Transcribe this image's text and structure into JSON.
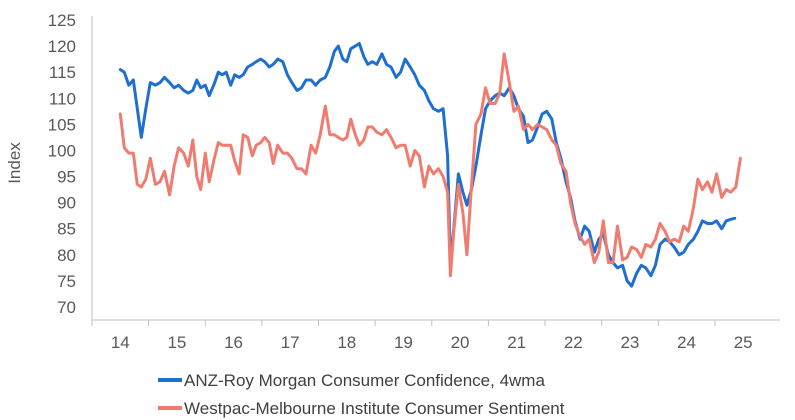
{
  "chart_data": {
    "type": "line",
    "title": "",
    "xlabel": "",
    "ylabel": "Index",
    "ylim": [
      70,
      125
    ],
    "yticks": [
      70,
      75,
      80,
      85,
      90,
      95,
      100,
      105,
      110,
      115,
      120,
      125
    ],
    "xlim": [
      2013.5,
      2025.65
    ],
    "xticks": [
      "14",
      "15",
      "16",
      "17",
      "18",
      "19",
      "20",
      "21",
      "22",
      "23",
      "24",
      "25"
    ],
    "grid": false,
    "legend_position": "bottom",
    "series": [
      {
        "name": "ANZ-Roy Morgan Consumer Confidence, 4wma",
        "color": "#1f6fd1",
        "points": [
          [
            2013.55,
            115.5
          ],
          [
            2013.62,
            115.0
          ],
          [
            2013.7,
            112.5
          ],
          [
            2013.78,
            113.5
          ],
          [
            2013.85,
            108.0
          ],
          [
            2013.92,
            102.5
          ],
          [
            2014.0,
            108.0
          ],
          [
            2014.08,
            113.0
          ],
          [
            2014.17,
            112.5
          ],
          [
            2014.25,
            113.0
          ],
          [
            2014.33,
            114.0
          ],
          [
            2014.42,
            113.0
          ],
          [
            2014.5,
            112.0
          ],
          [
            2014.58,
            112.5
          ],
          [
            2014.67,
            111.5
          ],
          [
            2014.75,
            111.0
          ],
          [
            2014.83,
            111.5
          ],
          [
            2014.9,
            113.5
          ],
          [
            2014.97,
            112.0
          ],
          [
            2015.05,
            112.5
          ],
          [
            2015.12,
            110.5
          ],
          [
            2015.2,
            112.5
          ],
          [
            2015.28,
            115.0
          ],
          [
            2015.35,
            114.5
          ],
          [
            2015.42,
            115.0
          ],
          [
            2015.5,
            112.5
          ],
          [
            2015.57,
            114.5
          ],
          [
            2015.65,
            114.0
          ],
          [
            2015.72,
            114.5
          ],
          [
            2015.8,
            116.0
          ],
          [
            2015.88,
            116.5
          ],
          [
            2015.95,
            117.0
          ],
          [
            2016.03,
            117.5
          ],
          [
            2016.1,
            117.0
          ],
          [
            2016.18,
            116.0
          ],
          [
            2016.25,
            116.5
          ],
          [
            2016.33,
            117.5
          ],
          [
            2016.42,
            117.0
          ],
          [
            2016.5,
            114.5
          ],
          [
            2016.58,
            113.0
          ],
          [
            2016.67,
            111.5
          ],
          [
            2016.75,
            112.0
          ],
          [
            2016.83,
            113.5
          ],
          [
            2016.92,
            113.5
          ],
          [
            2017.0,
            112.5
          ],
          [
            2017.08,
            113.5
          ],
          [
            2017.17,
            114.0
          ],
          [
            2017.25,
            116.0
          ],
          [
            2017.33,
            119.0
          ],
          [
            2017.4,
            120.0
          ],
          [
            2017.48,
            117.5
          ],
          [
            2017.55,
            117.0
          ],
          [
            2017.62,
            119.5
          ],
          [
            2017.7,
            120.0
          ],
          [
            2017.77,
            120.5
          ],
          [
            2017.85,
            118.0
          ],
          [
            2017.92,
            116.5
          ],
          [
            2018.0,
            117.0
          ],
          [
            2018.08,
            116.5
          ],
          [
            2018.17,
            118.5
          ],
          [
            2018.25,
            116.5
          ],
          [
            2018.33,
            116.0
          ],
          [
            2018.42,
            114.0
          ],
          [
            2018.5,
            115.0
          ],
          [
            2018.58,
            117.5
          ],
          [
            2018.67,
            116.0
          ],
          [
            2018.75,
            114.5
          ],
          [
            2018.83,
            112.5
          ],
          [
            2018.92,
            111.5
          ],
          [
            2019.0,
            109.5
          ],
          [
            2019.08,
            108.0
          ],
          [
            2019.17,
            107.5
          ],
          [
            2019.25,
            108.0
          ],
          [
            2019.33,
            99.0
          ],
          [
            2019.38,
            78.5
          ],
          [
            2019.44,
            85.0
          ],
          [
            2019.52,
            95.5
          ],
          [
            2019.6,
            92.0
          ],
          [
            2019.67,
            89.5
          ],
          [
            2019.75,
            92.5
          ],
          [
            2019.83,
            97.0
          ],
          [
            2019.92,
            103.0
          ],
          [
            2020.0,
            108.0
          ],
          [
            2020.08,
            109.5
          ],
          [
            2020.17,
            110.5
          ],
          [
            2020.25,
            111.0
          ],
          [
            2020.33,
            110.5
          ],
          [
            2020.42,
            112.0
          ],
          [
            2020.5,
            110.5
          ],
          [
            2020.58,
            108.0
          ],
          [
            2020.67,
            106.5
          ],
          [
            2020.75,
            101.5
          ],
          [
            2020.83,
            102.0
          ],
          [
            2020.92,
            104.5
          ],
          [
            2021.0,
            107.0
          ],
          [
            2021.08,
            107.5
          ],
          [
            2021.17,
            106.0
          ],
          [
            2021.25,
            101.5
          ],
          [
            2021.33,
            98.5
          ],
          [
            2021.42,
            94.0
          ],
          [
            2021.5,
            91.0
          ],
          [
            2021.58,
            86.5
          ],
          [
            2021.67,
            83.0
          ],
          [
            2021.75,
            85.5
          ],
          [
            2021.83,
            84.5
          ],
          [
            2021.92,
            80.5
          ],
          [
            2022.0,
            83.0
          ],
          [
            2022.08,
            84.0
          ],
          [
            2022.17,
            80.0
          ],
          [
            2022.25,
            78.5
          ],
          [
            2022.33,
            77.5
          ],
          [
            2022.42,
            78.0
          ],
          [
            2022.5,
            75.0
          ],
          [
            2022.58,
            74.0
          ],
          [
            2022.67,
            76.5
          ],
          [
            2022.75,
            78.0
          ],
          [
            2022.83,
            77.5
          ],
          [
            2022.92,
            76.0
          ],
          [
            2023.0,
            78.0
          ],
          [
            2023.08,
            82.0
          ],
          [
            2023.17,
            83.0
          ],
          [
            2023.25,
            82.5
          ],
          [
            2023.33,
            81.5
          ],
          [
            2023.42,
            80.0
          ],
          [
            2023.5,
            80.5
          ],
          [
            2023.58,
            82.0
          ],
          [
            2023.67,
            83.0
          ],
          [
            2023.75,
            84.5
          ],
          [
            2023.83,
            86.5
          ],
          [
            2023.92,
            86.0
          ],
          [
            2024.0,
            86.0
          ],
          [
            2024.08,
            86.5
          ],
          [
            2024.17,
            85.0
          ],
          [
            2024.25,
            86.5
          ],
          [
            2024.33,
            86.8
          ],
          [
            2024.4,
            87.0
          ]
        ]
      },
      {
        "name": "Westpac-Melbourne Institute Consumer Sentiment",
        "color": "#f07c70",
        "points": [
          [
            2013.55,
            107.0
          ],
          [
            2013.62,
            100.5
          ],
          [
            2013.7,
            99.5
          ],
          [
            2013.78,
            99.5
          ],
          [
            2013.85,
            93.5
          ],
          [
            2013.92,
            93.0
          ],
          [
            2014.0,
            94.5
          ],
          [
            2014.08,
            98.5
          ],
          [
            2014.17,
            93.5
          ],
          [
            2014.25,
            94.0
          ],
          [
            2014.33,
            96.0
          ],
          [
            2014.42,
            91.5
          ],
          [
            2014.5,
            97.0
          ],
          [
            2014.58,
            100.5
          ],
          [
            2014.67,
            99.5
          ],
          [
            2014.75,
            97.0
          ],
          [
            2014.83,
            102.0
          ],
          [
            2014.9,
            95.0
          ],
          [
            2014.97,
            92.5
          ],
          [
            2015.05,
            99.5
          ],
          [
            2015.12,
            94.0
          ],
          [
            2015.2,
            98.0
          ],
          [
            2015.28,
            101.5
          ],
          [
            2015.35,
            101.0
          ],
          [
            2015.42,
            101.0
          ],
          [
            2015.5,
            101.0
          ],
          [
            2015.57,
            98.0
          ],
          [
            2015.65,
            95.5
          ],
          [
            2015.72,
            103.0
          ],
          [
            2015.8,
            102.5
          ],
          [
            2015.88,
            99.0
          ],
          [
            2015.95,
            101.0
          ],
          [
            2016.03,
            101.5
          ],
          [
            2016.1,
            102.5
          ],
          [
            2016.18,
            101.5
          ],
          [
            2016.25,
            97.5
          ],
          [
            2016.33,
            101.0
          ],
          [
            2016.42,
            99.5
          ],
          [
            2016.5,
            99.5
          ],
          [
            2016.58,
            98.5
          ],
          [
            2016.67,
            96.5
          ],
          [
            2016.75,
            96.5
          ],
          [
            2016.83,
            95.5
          ],
          [
            2016.92,
            101.0
          ],
          [
            2017.0,
            99.5
          ],
          [
            2017.08,
            103.0
          ],
          [
            2017.17,
            108.5
          ],
          [
            2017.25,
            103.0
          ],
          [
            2017.33,
            103.0
          ],
          [
            2017.4,
            102.5
          ],
          [
            2017.48,
            102.0
          ],
          [
            2017.55,
            102.5
          ],
          [
            2017.62,
            106.0
          ],
          [
            2017.7,
            103.0
          ],
          [
            2017.77,
            101.0
          ],
          [
            2017.85,
            102.0
          ],
          [
            2017.92,
            104.5
          ],
          [
            2018.0,
            104.5
          ],
          [
            2018.08,
            103.5
          ],
          [
            2018.17,
            103.0
          ],
          [
            2018.25,
            104.0
          ],
          [
            2018.33,
            102.5
          ],
          [
            2018.42,
            100.5
          ],
          [
            2018.5,
            101.0
          ],
          [
            2018.58,
            101.0
          ],
          [
            2018.67,
            97.0
          ],
          [
            2018.75,
            100.0
          ],
          [
            2018.83,
            99.0
          ],
          [
            2018.92,
            93.0
          ],
          [
            2019.0,
            97.0
          ],
          [
            2019.08,
            95.5
          ],
          [
            2019.17,
            96.5
          ],
          [
            2019.25,
            95.0
          ],
          [
            2019.33,
            92.0
          ],
          [
            2019.38,
            76.0
          ],
          [
            2019.44,
            84.5
          ],
          [
            2019.52,
            93.5
          ],
          [
            2019.6,
            88.0
          ],
          [
            2019.67,
            80.0
          ],
          [
            2019.75,
            93.0
          ],
          [
            2019.83,
            105.0
          ],
          [
            2019.92,
            107.0
          ],
          [
            2020.0,
            112.0
          ],
          [
            2020.08,
            109.0
          ],
          [
            2020.17,
            109.0
          ],
          [
            2020.25,
            111.0
          ],
          [
            2020.33,
            118.5
          ],
          [
            2020.42,
            113.0
          ],
          [
            2020.5,
            107.5
          ],
          [
            2020.58,
            108.5
          ],
          [
            2020.67,
            104.0
          ],
          [
            2020.75,
            105.0
          ],
          [
            2020.83,
            104.0
          ],
          [
            2020.92,
            105.0
          ],
          [
            2021.0,
            104.5
          ],
          [
            2021.08,
            104.0
          ],
          [
            2021.17,
            102.0
          ],
          [
            2021.25,
            101.0
          ],
          [
            2021.33,
            97.5
          ],
          [
            2021.42,
            96.0
          ],
          [
            2021.5,
            90.0
          ],
          [
            2021.58,
            86.0
          ],
          [
            2021.67,
            83.5
          ],
          [
            2021.75,
            82.0
          ],
          [
            2021.83,
            83.0
          ],
          [
            2021.92,
            78.5
          ],
          [
            2022.0,
            80.5
          ],
          [
            2022.08,
            86.5
          ],
          [
            2022.17,
            78.5
          ],
          [
            2022.25,
            78.5
          ],
          [
            2022.33,
            85.5
          ],
          [
            2022.42,
            79.0
          ],
          [
            2022.5,
            79.5
          ],
          [
            2022.58,
            81.5
          ],
          [
            2022.67,
            81.0
          ],
          [
            2022.75,
            79.5
          ],
          [
            2022.83,
            82.0
          ],
          [
            2022.92,
            81.5
          ],
          [
            2023.0,
            83.0
          ],
          [
            2023.08,
            86.0
          ],
          [
            2023.17,
            84.5
          ],
          [
            2023.25,
            82.5
          ],
          [
            2023.33,
            83.0
          ],
          [
            2023.42,
            82.5
          ],
          [
            2023.5,
            85.5
          ],
          [
            2023.58,
            84.5
          ],
          [
            2023.67,
            89.0
          ],
          [
            2023.75,
            94.5
          ],
          [
            2023.83,
            92.5
          ],
          [
            2023.92,
            94.0
          ],
          [
            2024.0,
            92.0
          ],
          [
            2024.08,
            95.5
          ],
          [
            2024.17,
            91.0
          ],
          [
            2024.25,
            92.5
          ],
          [
            2024.33,
            92.0
          ],
          [
            2024.42,
            93.0
          ],
          [
            2024.5,
            98.5
          ]
        ]
      }
    ]
  }
}
